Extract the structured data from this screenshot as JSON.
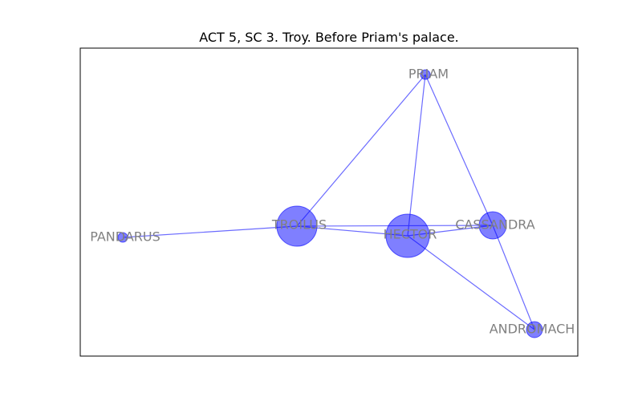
{
  "title": "ACT 5, SC 3. Troy. Before Priam's palace.",
  "colors": {
    "node": "#0000ff",
    "edge": "#6b6bff",
    "label": "#808080"
  },
  "nodes": [
    {
      "id": "PRIAM",
      "label": "PRIAM"
    },
    {
      "id": "TROILUS",
      "label": "TROILUS"
    },
    {
      "id": "HECTOR",
      "label": "HECTOR"
    },
    {
      "id": "CASSANDRA",
      "label": "CASSANDRA"
    },
    {
      "id": "PANDARUS",
      "label": "PANDARUS"
    },
    {
      "id": "ANDROMACHE",
      "label": "ANDROMACH"
    }
  ],
  "edges": [
    [
      "PRIAM",
      "TROILUS"
    ],
    [
      "PRIAM",
      "HECTOR"
    ],
    [
      "PRIAM",
      "CASSANDRA"
    ],
    [
      "PANDARUS",
      "TROILUS"
    ],
    [
      "TROILUS",
      "HECTOR"
    ],
    [
      "TROILUS",
      "CASSANDRA"
    ],
    [
      "HECTOR",
      "CASSANDRA"
    ],
    [
      "HECTOR",
      "ANDROMACHE"
    ],
    [
      "CASSANDRA",
      "ANDROMACHE"
    ]
  ]
}
